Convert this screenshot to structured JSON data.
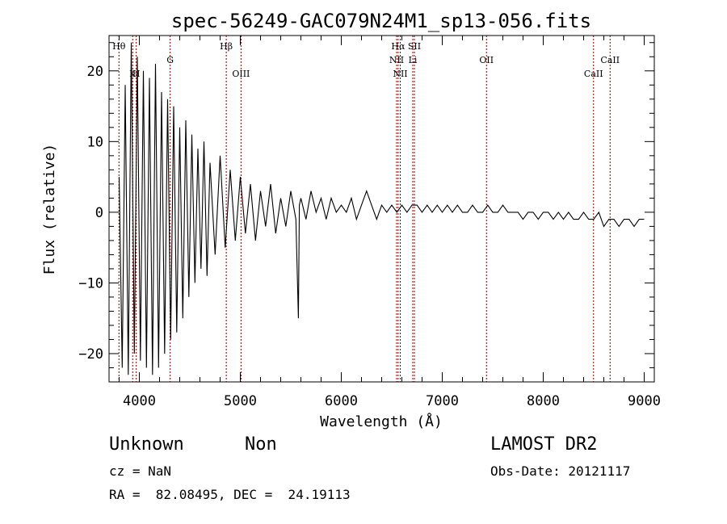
{
  "chart_data": {
    "type": "line",
    "title": "spec-56249-GAC079N24M1_sp13-056.fits",
    "xlabel": "Wavelength (Å)",
    "ylabel": "Flux (relative)",
    "xlim": [
      3700,
      9100
    ],
    "ylim": [
      -24,
      25
    ],
    "xticks": [
      4000,
      5000,
      6000,
      7000,
      8000,
      9000
    ],
    "yticks": [
      -20,
      -10,
      0,
      10,
      20
    ],
    "ytick_labels": [
      "−20",
      "−10",
      "0",
      "10",
      "20"
    ],
    "grid": false,
    "line_color": "#000000",
    "marker_color": "#8b0000",
    "series": [
      {
        "x": [
          3800,
          3830,
          3860,
          3890,
          3920,
          3950,
          3980,
          4010,
          4040,
          4070,
          4100,
          4130,
          4160,
          4190,
          4220,
          4250,
          4280,
          4310,
          4340,
          4370,
          4400,
          4430,
          4460,
          4490,
          4520,
          4550,
          4580,
          4610,
          4640,
          4670,
          4700,
          4750,
          4800,
          4850,
          4900,
          4950,
          5000,
          5050,
          5100,
          5150,
          5200,
          5250,
          5300,
          5350,
          5400,
          5450,
          5500,
          5550,
          5575,
          5585,
          5600,
          5650,
          5700,
          5750,
          5800,
          5850,
          5900,
          5950,
          6000,
          6050,
          6100,
          6150,
          6200,
          6250,
          6300,
          6350,
          6400,
          6450,
          6500,
          6550,
          6600,
          6650,
          6700,
          6750,
          6800,
          6850,
          6900,
          6950,
          7000,
          7050,
          7100,
          7150,
          7200,
          7250,
          7300,
          7350,
          7400,
          7450,
          7500,
          7550,
          7600,
          7650,
          7700,
          7750,
          7800,
          7850,
          7900,
          7950,
          8000,
          8050,
          8100,
          8150,
          8200,
          8250,
          8300,
          8350,
          8400,
          8450,
          8500,
          8550,
          8600,
          8650,
          8700,
          8750,
          8800,
          8850,
          8900,
          8950,
          9000
        ],
        "y": [
          5,
          -22,
          18,
          -23,
          24,
          -20,
          22,
          -21,
          20,
          -22,
          19,
          -23,
          21,
          -22,
          17,
          -20,
          16,
          -18,
          15,
          -17,
          12,
          -15,
          13,
          -12,
          11,
          -10,
          9,
          -8,
          10,
          -9,
          7,
          -6,
          8,
          -5,
          6,
          -4,
          5,
          -3,
          4,
          -4,
          3,
          -2,
          4,
          -3,
          2,
          -2,
          3,
          -1,
          -15,
          1,
          2,
          -1,
          3,
          0,
          2,
          -1,
          2,
          0,
          1,
          0,
          2,
          -1,
          1,
          3,
          1,
          -1,
          1,
          0,
          1,
          0,
          1,
          0,
          1,
          1,
          0,
          1,
          0,
          1,
          0,
          1,
          0,
          1,
          0,
          0,
          1,
          0,
          0,
          1,
          0,
          0,
          1,
          0,
          0,
          0,
          -1,
          0,
          0,
          -1,
          0,
          0,
          -1,
          0,
          -1,
          0,
          -1,
          -1,
          0,
          -1,
          -1,
          0,
          -2,
          -1,
          -1,
          -2,
          -1,
          -1,
          -2,
          -1,
          -1
        ]
      }
    ],
    "lines": [
      {
        "label": "Hθ",
        "x": 3798,
        "row": 1
      },
      {
        "label": "K",
        "x": 3934,
        "row": 3
      },
      {
        "label": "H",
        "x": 3969,
        "row": 3
      },
      {
        "label": "G",
        "x": 4305,
        "row": 2
      },
      {
        "label": "Hβ",
        "x": 4861,
        "row": 1
      },
      {
        "label": "OIII",
        "x": 5007,
        "row": 3
      },
      {
        "label": "Hα",
        "x": 6563,
        "row": 1
      },
      {
        "label": "SII",
        "x": 6724,
        "row": 1
      },
      {
        "label": "NII",
        "x": 6548,
        "row": 2
      },
      {
        "label": "Li",
        "x": 6708,
        "row": 2
      },
      {
        "label": "NII",
        "x": 6584,
        "row": 3
      },
      {
        "label": "OII",
        "x": 7438,
        "row": 2
      },
      {
        "label": "CaII",
        "x": 8662,
        "row": 2
      },
      {
        "label": "CaII",
        "x": 8498,
        "row": 3
      }
    ]
  },
  "info": {
    "object_class": "Unknown",
    "subclass": "Non",
    "survey": "LAMOST DR2",
    "redshift_text": "cz = NaN",
    "obs_date": "Obs-Date: 20121117",
    "coordinates": "RA =  82.08495, DEC =  24.19113"
  }
}
